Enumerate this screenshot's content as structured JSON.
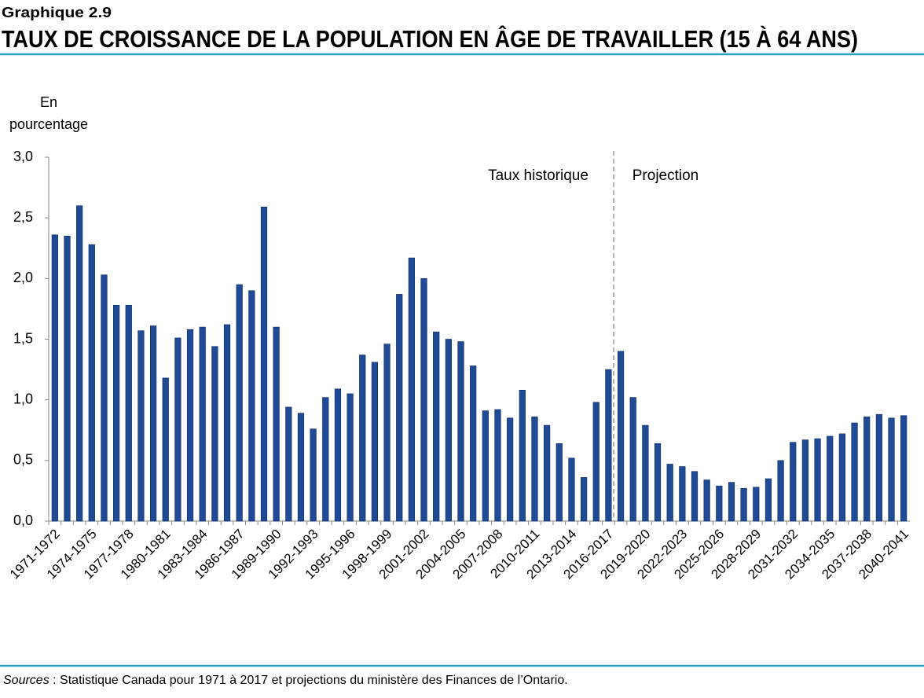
{
  "chart_data": {
    "type": "bar",
    "label": "Graphique 2.9",
    "title": "TAUX DE CROISSANCE DE LA POPULATION EN ÂGE DE TRAVAILLER (15 À 64 ANS)",
    "y_label": "En pourcentage",
    "annotations": [
      "Taux historique",
      "Projection"
    ],
    "source_label": "Sources",
    "source": ": Statistique Canada pour 1971 à 2017 et projections du ministère des Finances de l’Ontario.",
    "categories": [
      "1971-1972",
      null,
      null,
      "1974-1975",
      null,
      null,
      "1977-1978",
      null,
      null,
      "1980-1981",
      null,
      null,
      "1983-1984",
      null,
      null,
      "1986-1987",
      null,
      null,
      "1989-1990",
      null,
      null,
      "1992-1993",
      null,
      null,
      "1995-1996",
      null,
      null,
      "1998-1999",
      null,
      null,
      "2001-2002",
      null,
      null,
      "2004-2005",
      null,
      null,
      "2007-2008",
      null,
      null,
      "2010-2011",
      null,
      null,
      "2013-2014",
      null,
      null,
      "2016-2017",
      null,
      null,
      "2019-2020",
      null,
      null,
      "2022-2023",
      null,
      null,
      "2025-2026",
      null,
      null,
      "2028-2029",
      null,
      null,
      "2031-2032",
      null,
      null,
      "2034-2035",
      null,
      null,
      "2037-2038",
      null,
      null,
      "2040-2041"
    ],
    "values": [
      2.36,
      2.35,
      2.6,
      2.28,
      2.03,
      1.78,
      1.78,
      1.57,
      1.61,
      1.18,
      1.51,
      1.58,
      1.6,
      1.44,
      1.62,
      1.95,
      1.9,
      2.59,
      1.6,
      0.94,
      0.89,
      0.76,
      1.02,
      1.09,
      1.05,
      1.37,
      1.31,
      1.46,
      1.87,
      2.17,
      2.0,
      1.56,
      1.5,
      1.48,
      1.28,
      0.91,
      0.92,
      0.85,
      1.08,
      0.86,
      0.79,
      0.64,
      0.52,
      0.36,
      0.98,
      1.25,
      1.4,
      1.02,
      0.79,
      0.64,
      0.47,
      0.45,
      0.41,
      0.34,
      0.29,
      0.32,
      0.27,
      0.28,
      0.35,
      0.5,
      0.65,
      0.67,
      0.68,
      0.7,
      0.72,
      0.81,
      0.86,
      0.88,
      0.85,
      0.87
    ],
    "color": "#1f4a96",
    "ylim": [
      0,
      3
    ],
    "yticks": [
      {
        "value": 0,
        "label": "0,0"
      },
      {
        "value": 0.5,
        "label": "0,5"
      },
      {
        "value": 1,
        "label": "1,0"
      },
      {
        "value": 1.5,
        "label": "1,5"
      },
      {
        "value": 2,
        "label": "2,0"
      },
      {
        "value": 2.5,
        "label": "2,5"
      },
      {
        "value": 3,
        "label": "3,0"
      }
    ],
    "grid": false
  }
}
